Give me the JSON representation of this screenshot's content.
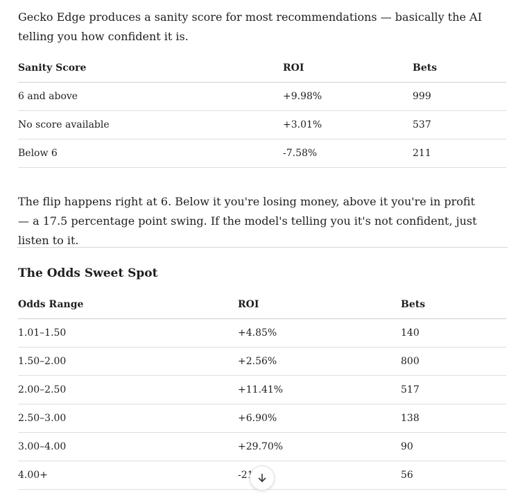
{
  "intro_text": "Gecko Edge produces a sanity score for most recommendations — basically the AI telling you how confident it is.",
  "sanity_table": {
    "headers": [
      "Sanity Score",
      "ROI",
      "Bets"
    ],
    "rows": [
      [
        "6 and above",
        "+9.98%",
        "999"
      ],
      [
        "No score available",
        "+3.01%",
        "537"
      ],
      [
        "Below 6",
        "-7.58%",
        "211"
      ]
    ]
  },
  "flip_text": "The flip happens right at 6. Below it you're losing money, above it you're in profit — a 17.5 percentage point swing. If the model's telling you it's not confident, just listen to it.",
  "odds_section": {
    "title": "The Odds Sweet Spot",
    "headers": [
      "Odds Range",
      "ROI",
      "Bets"
    ],
    "rows": [
      [
        "1.01–1.50",
        "+4.85%",
        "140"
      ],
      [
        "1.50–2.00",
        "+2.56%",
        "800"
      ],
      [
        "2.00–2.50",
        "+11.41%",
        "517"
      ],
      [
        "2.50–3.00",
        "+6.90%",
        "138"
      ],
      [
        "3.00–4.00",
        "+29.70%",
        "90"
      ],
      [
        "4.00+",
        "-21",
        "56"
      ]
    ]
  },
  "scroll_button": {
    "icon": "arrow-down-icon"
  }
}
